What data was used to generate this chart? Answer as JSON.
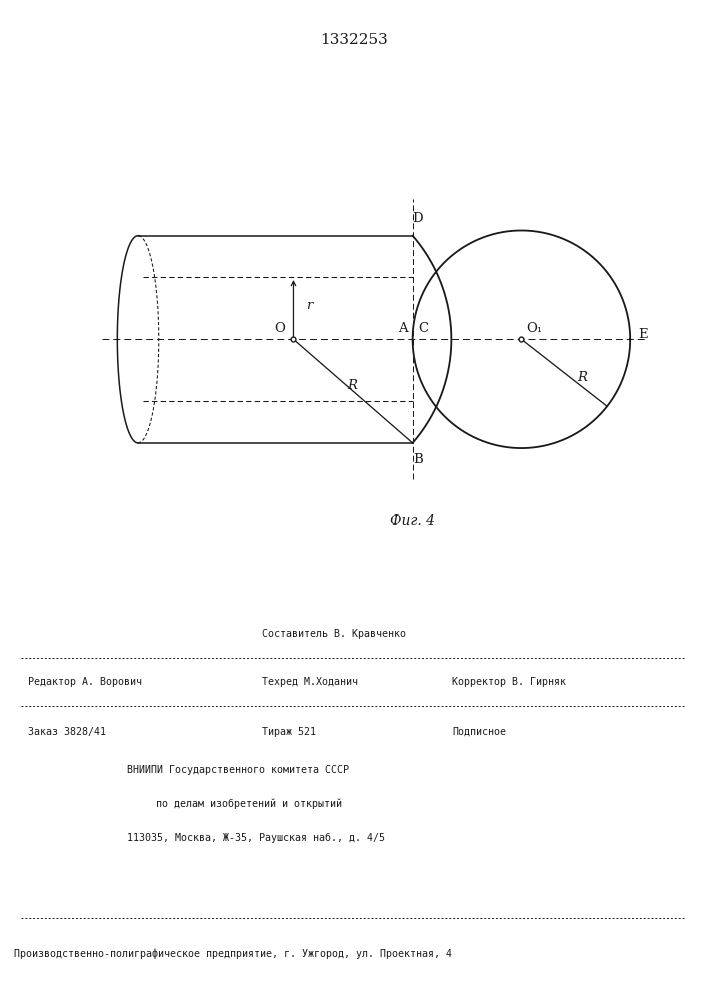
{
  "title": "1332253",
  "fig_label": "Фиг. 4",
  "bg_color": "#ffffff",
  "line_color": "#1a1a1a",
  "footer_editor": "Редактор А. Ворович",
  "footer_compiler": "Составитель В. Кравченко",
  "footer_techred": "Техред М.Ходанич",
  "footer_corrector": "Корректор В. Гирняк",
  "footer_order": "Заказ 3828/41",
  "footer_tirazh": "Тираж 521",
  "footer_podp": "Подписное",
  "footer_vniip1": "ВНИИПИ Государственного комитета СССР",
  "footer_vniip2": "по делам изобретений и открытий",
  "footer_vniip3": "113035, Москва, Ж-35, Раушская наб., д. 4/5",
  "footer_prod": "Производственно-полиграфическое предприятие, г. Ужгород, ул. Проектная, 4"
}
